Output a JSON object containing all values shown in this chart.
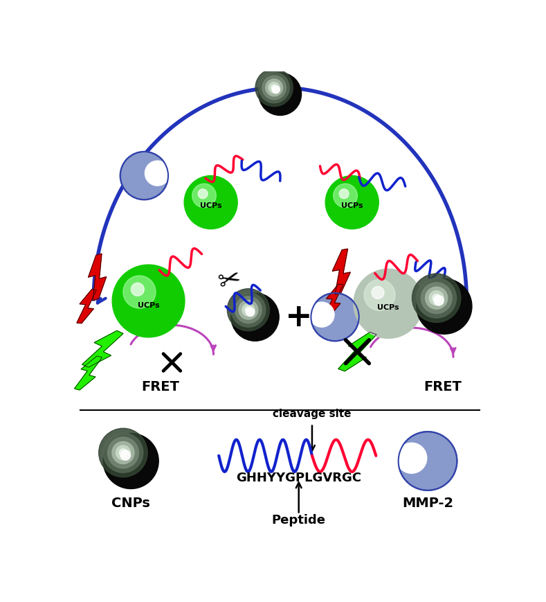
{
  "bg_color": "#ffffff",
  "ucp_green": "#22dd00",
  "ucp_gray": "#a8b8a8",
  "cnp_dark": "#080808",
  "cnp_highlight": "#99ddaa",
  "mmp2_color": "#8899cc",
  "mmp2_edge": "#3344aa",
  "arrow_blue": "#2233bb",
  "arrow_purple": "#bb44bb",
  "peptide_blue": "#1122cc",
  "peptide_red": "#ff0033",
  "lightning_red": "#dd0000",
  "lightning_red2": "#ff2244",
  "lightning_green": "#22ee00",
  "label_cnps": "CNPs",
  "label_peptide": "Peptide",
  "label_cleavage": "cleavage site",
  "label_sequence": "GHHYYGPLGVRGC",
  "label_mmp2": "MMP-2",
  "label_fret": "FRET",
  "label_ucps": "UCPs"
}
